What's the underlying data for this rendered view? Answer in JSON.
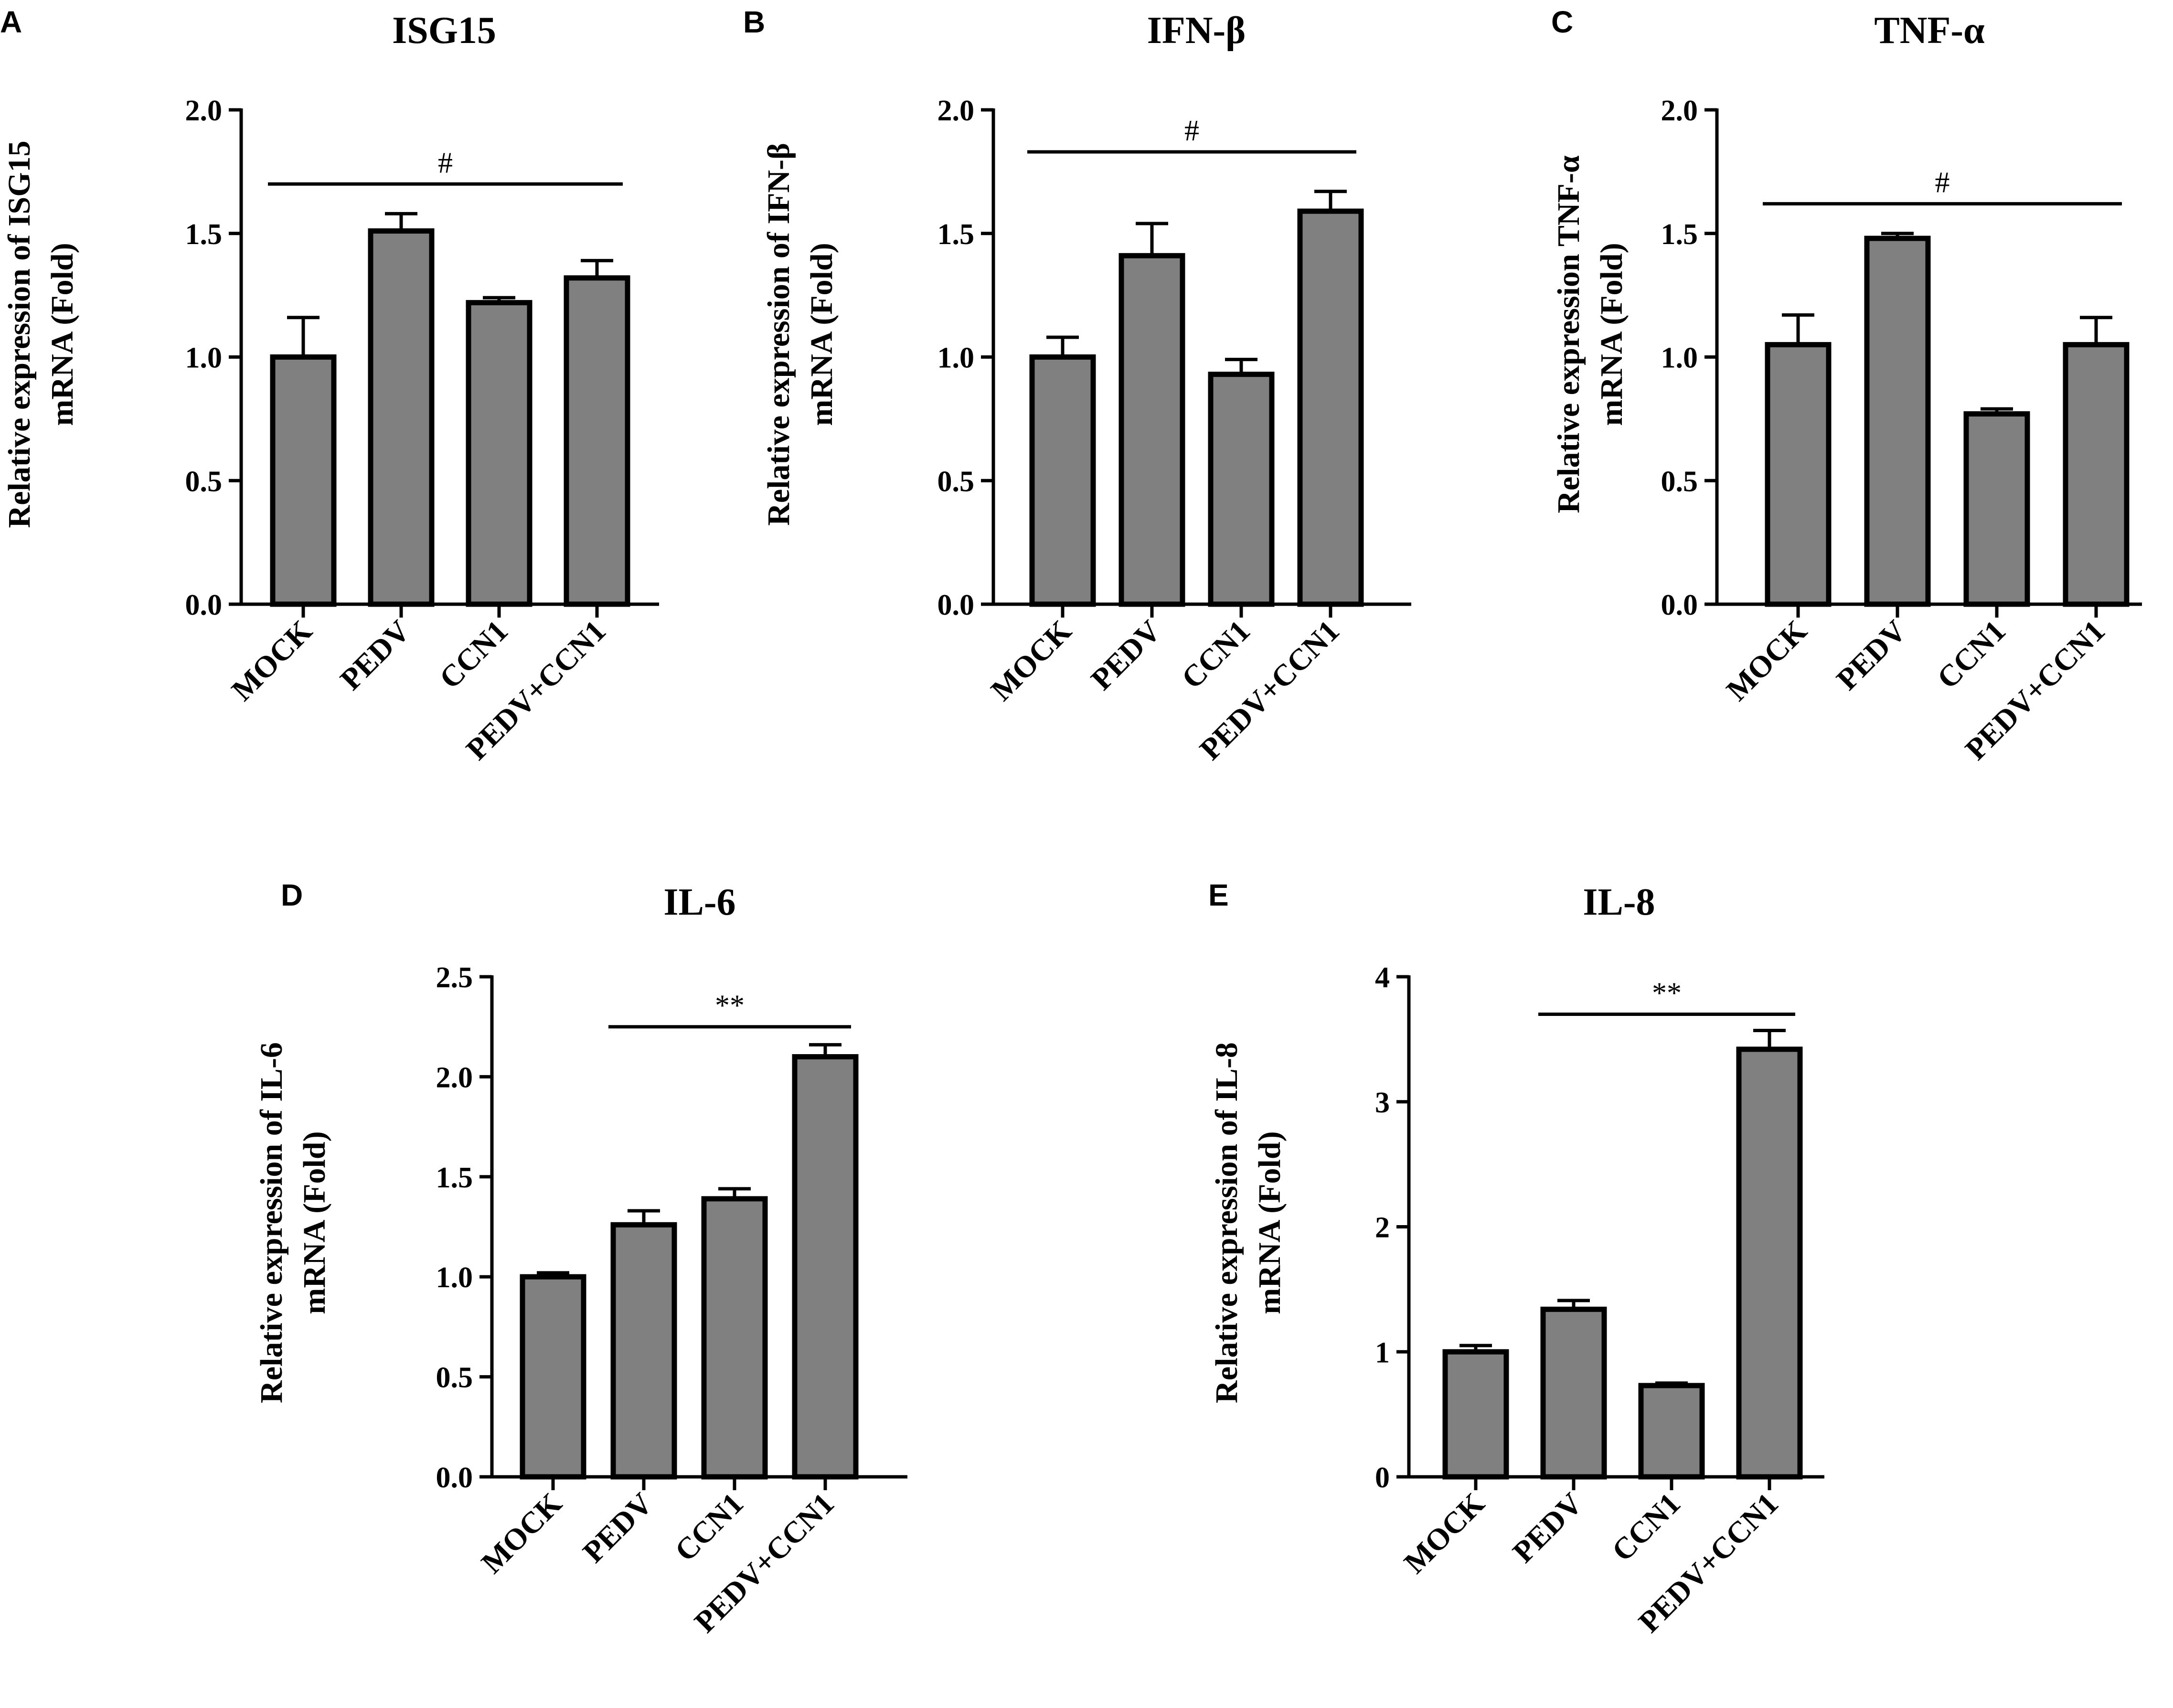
{
  "figure_labels": [
    "A",
    "B",
    "C",
    "D",
    "E"
  ],
  "chart_data": [
    {
      "type": "bar",
      "panel": "A",
      "title": "ISG15",
      "xlabel": "",
      "ylabel_line1": "Relative expression of ISG15",
      "ylabel_line2": "mRNA (Fold)",
      "categories": [
        "MOCK",
        "PEDV",
        "CCN1",
        "PEDV+CCN1"
      ],
      "values": [
        1.0,
        1.51,
        1.22,
        1.32
      ],
      "errors": [
        0.16,
        0.07,
        0.02,
        0.07
      ],
      "ylim": [
        0,
        2.0
      ],
      "yticks": [
        0.0,
        0.5,
        1.0,
        1.5,
        2.0
      ],
      "ytick_labels": [
        "0.0",
        "0.5",
        "1.0",
        "1.5",
        "2.0"
      ],
      "significance": {
        "label": "#",
        "from": 0,
        "to": 3,
        "y": 1.7
      },
      "bar_color": "#808080"
    },
    {
      "type": "bar",
      "panel": "B",
      "title": "IFN-β",
      "xlabel": "",
      "ylabel_line1": "Relative expression of IFN-β",
      "ylabel_line2": "mRNA (Fold)",
      "categories": [
        "MOCK",
        "PEDV",
        "CCN1",
        "PEDV+CCN1"
      ],
      "values": [
        1.0,
        1.41,
        0.93,
        1.59
      ],
      "errors": [
        0.08,
        0.13,
        0.06,
        0.08
      ],
      "ylim": [
        0,
        2.0
      ],
      "yticks": [
        0.0,
        0.5,
        1.0,
        1.5,
        2.0
      ],
      "ytick_labels": [
        "0.0",
        "0.5",
        "1.0",
        "1.5",
        "2.0"
      ],
      "significance": {
        "label": "#",
        "from": 0,
        "to": 3,
        "y": 1.83
      },
      "bar_color": "#808080"
    },
    {
      "type": "bar",
      "panel": "C",
      "title": "TNF-α",
      "xlabel": "",
      "ylabel_line1": "Relative expression TNF-α",
      "ylabel_line2": "mRNA (Fold)",
      "categories": [
        "MOCK",
        "PEDV",
        "CCN1",
        "PEDV+CCN1"
      ],
      "values": [
        1.05,
        1.48,
        0.77,
        1.05
      ],
      "errors": [
        0.12,
        0.02,
        0.02,
        0.11
      ],
      "ylim": [
        0,
        2.0
      ],
      "yticks": [
        0.0,
        0.5,
        1.0,
        1.5,
        2.0
      ],
      "ytick_labels": [
        "0.0",
        "0.5",
        "1.0",
        "1.5",
        "2.0"
      ],
      "significance": {
        "label": "#",
        "from": 0,
        "to": 3,
        "y": 1.62
      },
      "bar_color": "#808080"
    },
    {
      "type": "bar",
      "panel": "D",
      "title": "IL-6",
      "xlabel": "",
      "ylabel_line1": "Relative expression of IL-6",
      "ylabel_line2": "mRNA (Fold)",
      "categories": [
        "MOCK",
        "PEDV",
        "CCN1",
        "PEDV+CCN1"
      ],
      "values": [
        1.0,
        1.26,
        1.39,
        2.1
      ],
      "errors": [
        0.02,
        0.07,
        0.05,
        0.06
      ],
      "ylim": [
        0,
        2.5
      ],
      "yticks": [
        0.0,
        0.5,
        1.0,
        1.5,
        2.0,
        2.5
      ],
      "ytick_labels": [
        "0.0",
        "0.5",
        "1.0",
        "1.5",
        "2.0",
        "2.5"
      ],
      "significance": {
        "label": "**",
        "from": 1,
        "to": 3,
        "y": 2.25
      },
      "bar_color": "#808080"
    },
    {
      "type": "bar",
      "panel": "E",
      "title": "IL-8",
      "xlabel": "",
      "ylabel_line1": "Relative expression of IL-8",
      "ylabel_line2": "mRNA (Fold)",
      "categories": [
        "MOCK",
        "PEDV",
        "CCN1",
        "PEDV+CCN1"
      ],
      "values": [
        1.0,
        1.34,
        0.73,
        3.42
      ],
      "errors": [
        0.05,
        0.07,
        0.02,
        0.15
      ],
      "ylim": [
        0,
        4
      ],
      "yticks": [
        0,
        1,
        2,
        3,
        4
      ],
      "ytick_labels": [
        "0",
        "1",
        "2",
        "3",
        "4"
      ],
      "significance": {
        "label": "**",
        "from": 1,
        "to": 3,
        "y": 3.7
      },
      "bar_color": "#808080"
    }
  ]
}
